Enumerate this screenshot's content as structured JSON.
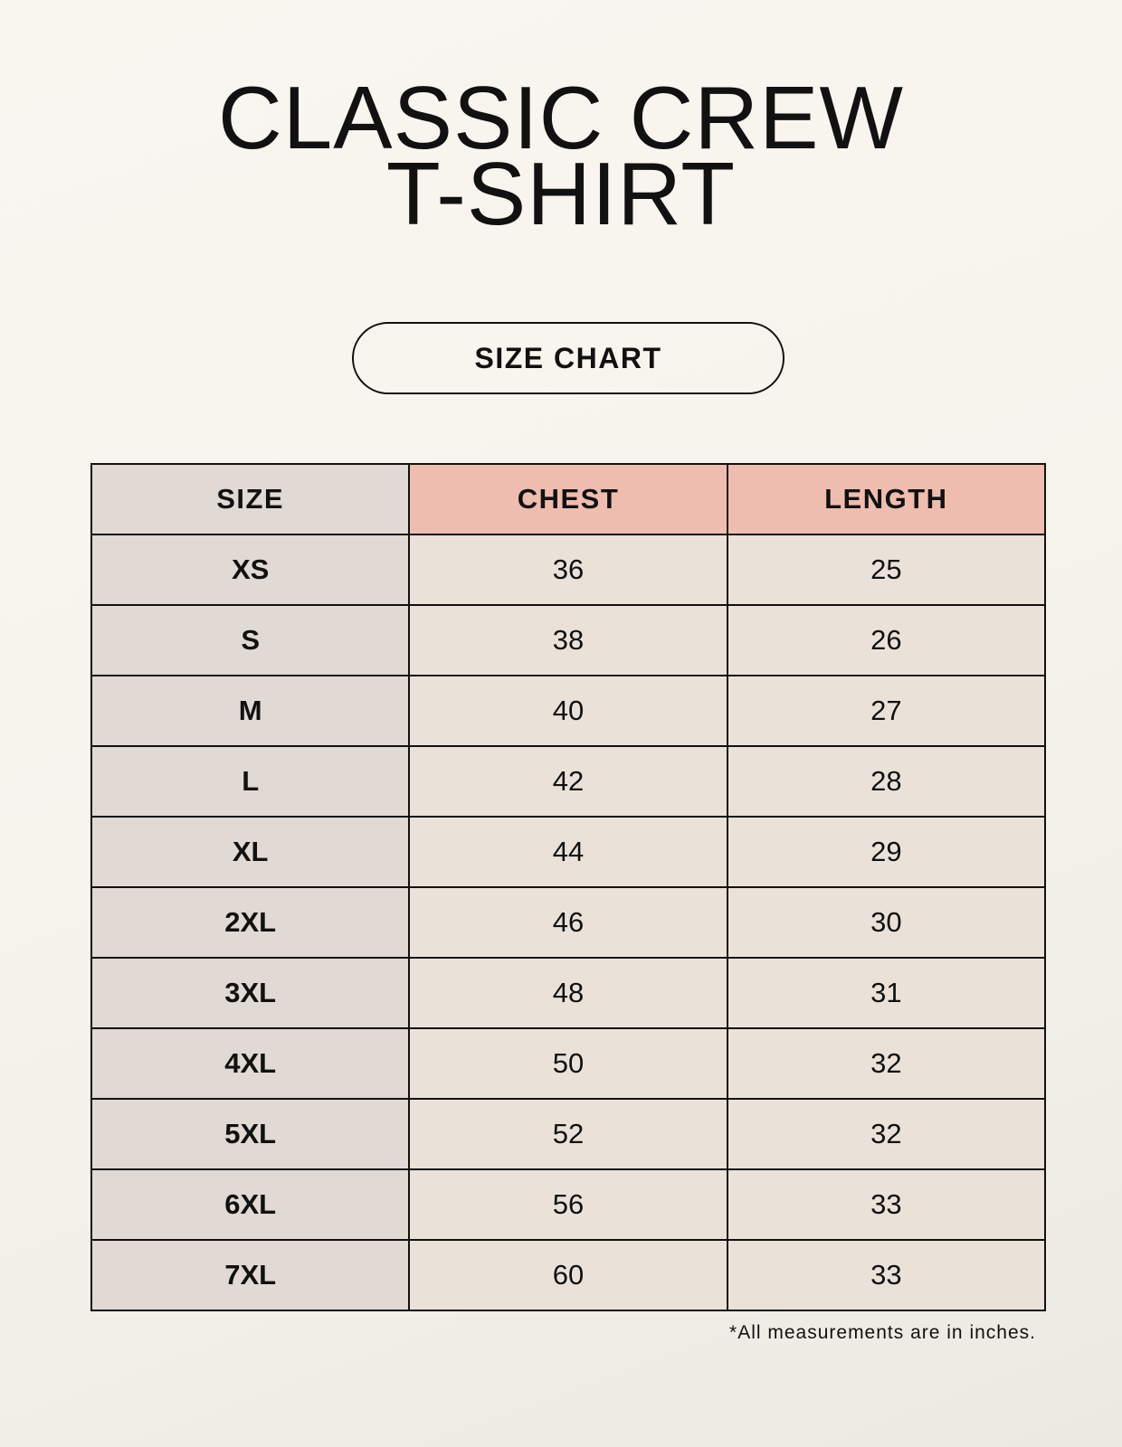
{
  "title": {
    "line1": "CLASSIC CREW",
    "line2": "T-SHIRT"
  },
  "badge": "SIZE CHART",
  "table": {
    "headers": [
      "SIZE",
      "CHEST",
      "LENGTH"
    ],
    "rows": [
      [
        "XS",
        "36",
        "25"
      ],
      [
        "S",
        "38",
        "26"
      ],
      [
        "M",
        "40",
        "27"
      ],
      [
        "L",
        "42",
        "28"
      ],
      [
        "XL",
        "44",
        "29"
      ],
      [
        "2XL",
        "46",
        "30"
      ],
      [
        "3XL",
        "48",
        "31"
      ],
      [
        "4XL",
        "50",
        "32"
      ],
      [
        "5XL",
        "52",
        "32"
      ],
      [
        "6XL",
        "56",
        "33"
      ],
      [
        "7XL",
        "60",
        "33"
      ]
    ]
  },
  "footnote": "*All measurements are in inches.",
  "colors": {
    "size_column": "#e1d9d3",
    "header_accent": "#efbdaf",
    "value_cells": "#eae2d8"
  }
}
